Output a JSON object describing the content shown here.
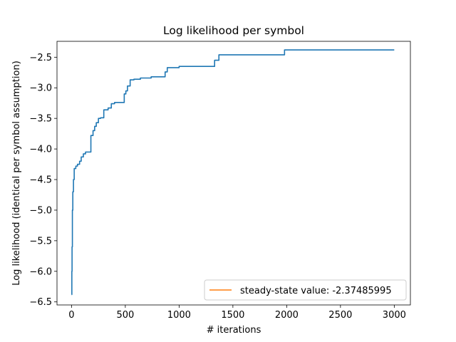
{
  "chart_data": {
    "type": "line",
    "title": "Log likelihood per symbol",
    "xlabel": "# iterations",
    "ylabel": "Log likelihood (identical per symbol assumption)",
    "xlim": [
      -135,
      3150
    ],
    "ylim": [
      -6.55,
      -2.24
    ],
    "x_ticks": [
      0,
      500,
      1000,
      1500,
      2000,
      2500,
      3000
    ],
    "x_tick_labels": [
      "0",
      "500",
      "1000",
      "1500",
      "2000",
      "2500",
      "3000"
    ],
    "y_ticks": [
      -6.5,
      -6.0,
      -5.5,
      -5.0,
      -4.5,
      -4.0,
      -3.5,
      -3.0,
      -2.5
    ],
    "y_tick_labels": [
      "−6.5",
      "−6.0",
      "−5.5",
      "−5.0",
      "−4.5",
      "−4.0",
      "−3.5",
      "−3.0",
      "−2.5"
    ],
    "grid": false,
    "legend_position": "lower-right",
    "legend_entries": [
      "steady-state value: -2.37485995"
    ],
    "series": [
      {
        "color": "#1f77b4",
        "step": true,
        "x": [
          0,
          3,
          5,
          8,
          12,
          18,
          25,
          40,
          55,
          75,
          90,
          110,
          130,
          180,
          200,
          215,
          230,
          250,
          270,
          300,
          340,
          370,
          400,
          490,
          505,
          520,
          545,
          580,
          640,
          740,
          870,
          890,
          920,
          1000,
          1330,
          1370,
          1500,
          1980,
          3000
        ],
        "y": [
          -6.38,
          -6.0,
          -5.6,
          -5.0,
          -4.7,
          -4.5,
          -4.32,
          -4.28,
          -4.25,
          -4.2,
          -4.13,
          -4.08,
          -4.05,
          -3.78,
          -3.7,
          -3.63,
          -3.57,
          -3.5,
          -3.49,
          -3.36,
          -3.33,
          -3.26,
          -3.24,
          -3.1,
          -3.05,
          -2.97,
          -2.87,
          -2.86,
          -2.84,
          -2.82,
          -2.74,
          -2.67,
          -2.67,
          -2.65,
          -2.55,
          -2.46,
          -2.46,
          -2.38,
          -2.38
        ]
      },
      {
        "name": "steady-state value: -2.37485995",
        "color": "#ff7f0e",
        "x": [],
        "y": []
      }
    ]
  }
}
